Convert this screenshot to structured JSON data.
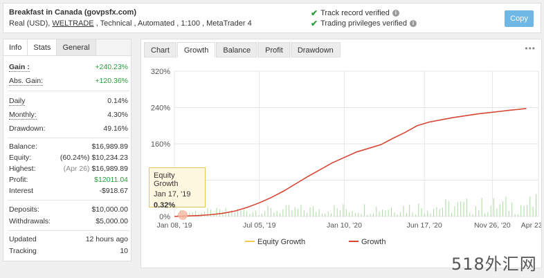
{
  "header": {
    "account_name": "Breakfast in Canada (govpsfx.com)",
    "meta_prefix": "Real (USD), ",
    "broker": "WELTRADE",
    "meta_suffix": " , Technical , Automated , 1:100 , MetaTrader 4",
    "verified_track": "Track record verified",
    "verified_trading": "Trading privileges verified",
    "copy_label": "Copy"
  },
  "left_tabs": [
    "Info",
    "Stats",
    "General"
  ],
  "stats": {
    "gain_label": "Gain :",
    "gain_value": "+240.23%",
    "abs_gain_label": "Abs. Gain:",
    "abs_gain_value": "+120.36%",
    "daily_label": "Daily",
    "daily_value": "0.14%",
    "monthly_label": "Monthly:",
    "monthly_value": "4.30%",
    "drawdown_label": "Drawdown:",
    "drawdown_value": "49.16%",
    "balance_label": "Balance:",
    "balance_value": "$16,989.89",
    "equity_label": "Equity:",
    "equity_pct": "(60.24%)",
    "equity_value": "$10,234.23",
    "highest_label": "Highest:",
    "highest_date": "(Apr 26)",
    "highest_value": "$16,989.89",
    "profit_label": "Profit:",
    "profit_value": "$12011.04",
    "interest_label": "Interest",
    "interest_value": "-$918.67",
    "deposits_label": "Deposits:",
    "deposits_value": "$10,000.00",
    "withdrawals_label": "Withdrawals:",
    "withdrawals_value": "$5,000.00",
    "updated_label": "Updated",
    "updated_value": "12 hours ago",
    "tracking_label": "Tracking",
    "tracking_value": "10"
  },
  "right_tabs": [
    "Chart",
    "Growth",
    "Balance",
    "Profit",
    "Drawdown"
  ],
  "tooltip": {
    "title": "Equity Growth",
    "date": "Jan 17, '19",
    "value": "0.32%"
  },
  "watermark": "518外汇网",
  "chart_data": {
    "type": "line",
    "y_ticks": [
      "320%",
      "240%",
      "160%",
      "80%",
      "0%"
    ],
    "x_ticks": [
      "Jan 08, '19",
      "Jul 05, '19",
      "Jan 10, '20",
      "Jun 17, '20",
      "Nov 26, '20",
      "Apr 23, '21"
    ],
    "ylim": [
      0,
      320
    ],
    "series": [
      {
        "name": "Equity Growth",
        "color": "#f2c94c"
      },
      {
        "name": "Growth",
        "color": "#d64533"
      }
    ],
    "growth_points": [
      [
        0,
        0
      ],
      [
        0.05,
        1
      ],
      [
        0.1,
        2
      ],
      [
        0.15,
        4
      ],
      [
        0.2,
        7
      ],
      [
        0.25,
        12
      ],
      [
        0.3,
        20
      ],
      [
        0.35,
        30
      ],
      [
        0.4,
        42
      ],
      [
        0.45,
        56
      ],
      [
        0.5,
        72
      ],
      [
        0.55,
        88
      ],
      [
        0.6,
        103
      ],
      [
        0.65,
        118
      ],
      [
        0.7,
        130
      ],
      [
        0.75,
        142
      ],
      [
        0.8,
        150
      ],
      [
        0.85,
        158
      ],
      [
        0.9,
        172
      ],
      [
        0.95,
        185
      ],
      [
        1.0,
        200
      ],
      [
        1.05,
        208
      ],
      [
        1.1,
        213
      ],
      [
        1.15,
        218
      ],
      [
        1.2,
        222
      ],
      [
        1.25,
        226
      ],
      [
        1.3,
        229
      ],
      [
        1.35,
        232
      ],
      [
        1.38,
        234
      ],
      [
        1.42,
        236
      ],
      [
        1.45,
        238
      ]
    ],
    "x_tick_positions": [
      0,
      0.35,
      0.7,
      1.03,
      1.31,
      1.5
    ],
    "x_max": 1.5
  }
}
